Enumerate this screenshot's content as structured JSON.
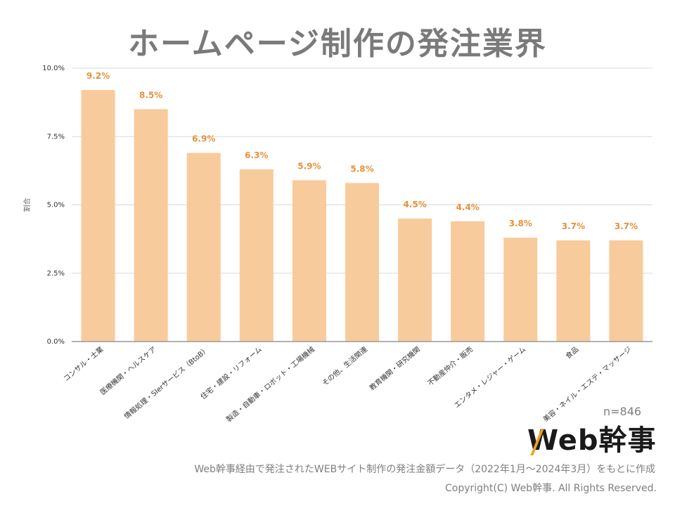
{
  "page": {
    "title": "ホームページ制作の発注業界",
    "n_label": "n=846",
    "logo_text": "Web幹事",
    "source_note": "Web幹事経由で発注されたWEBサイト制作の発注金額データ（2022年1月〜2024年3月）をもとに作成",
    "copyright": "Copyright(C) Web幹事. All Rights Reserved."
  },
  "chart_data": {
    "type": "bar",
    "title": "ホームページ制作の発注業界",
    "ylabel": "割合",
    "xlabel": "",
    "ylim": [
      0,
      10
    ],
    "yticks": [
      {
        "value": 0,
        "label": "0.0%"
      },
      {
        "value": 2.5,
        "label": "2.5%"
      },
      {
        "value": 5,
        "label": "5.0%"
      },
      {
        "value": 7.5,
        "label": "7.5%"
      },
      {
        "value": 10,
        "label": "10.0%"
      }
    ],
    "grid": true,
    "categories": [
      "コンサル・士業",
      "医療機関・ヘルスケア",
      "情報処理・SIerサービス（BtoB）",
      "住宅・建設・リフォーム",
      "製造・自動車・ロボット・工場機械",
      "その他、生活関連",
      "教育機関・研究機関",
      "不動産仲介・販売",
      "エンタメ・レジャー・ゲーム",
      "食品",
      "美容・ネイル・エステ・マッサージ"
    ],
    "values": [
      9.2,
      8.5,
      6.9,
      6.3,
      5.9,
      5.8,
      4.5,
      4.4,
      3.8,
      3.7,
      3.7
    ],
    "data_labels": [
      "9.2%",
      "8.5%",
      "6.9%",
      "6.3%",
      "5.9%",
      "5.8%",
      "4.5%",
      "4.4%",
      "3.8%",
      "3.7%",
      "3.7%"
    ],
    "colors": {
      "bar": "#f8cb9c",
      "data_label": "#e69138",
      "grid": "#d9d9d9",
      "axis": "#999999",
      "tick_label": "#333333"
    }
  }
}
